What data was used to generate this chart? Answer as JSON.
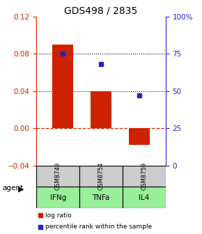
{
  "title": "GDS498 / 2835",
  "samples": [
    "GSM8749",
    "GSM8754",
    "GSM8759"
  ],
  "agents": [
    "IFNg",
    "TNFa",
    "IL4"
  ],
  "log_ratios": [
    0.09,
    0.04,
    -0.018
  ],
  "percentile_ranks": [
    75,
    68,
    47
  ],
  "bar_color": "#cc2200",
  "dot_color": "#2222cc",
  "left_ylim": [
    -0.04,
    0.12
  ],
  "right_ylim": [
    0,
    100
  ],
  "left_yticks": [
    -0.04,
    0,
    0.04,
    0.08,
    0.12
  ],
  "right_yticks": [
    0,
    25,
    50,
    75,
    100
  ],
  "right_yticklabels": [
    "0",
    "25",
    "50",
    "75",
    "100%"
  ],
  "dotted_lines": [
    0.04,
    0.08
  ],
  "zero_line": 0.0,
  "agent_color": "#99ee99",
  "sample_bg": "#cccccc",
  "bar_width": 0.55,
  "title_fontsize": 10
}
